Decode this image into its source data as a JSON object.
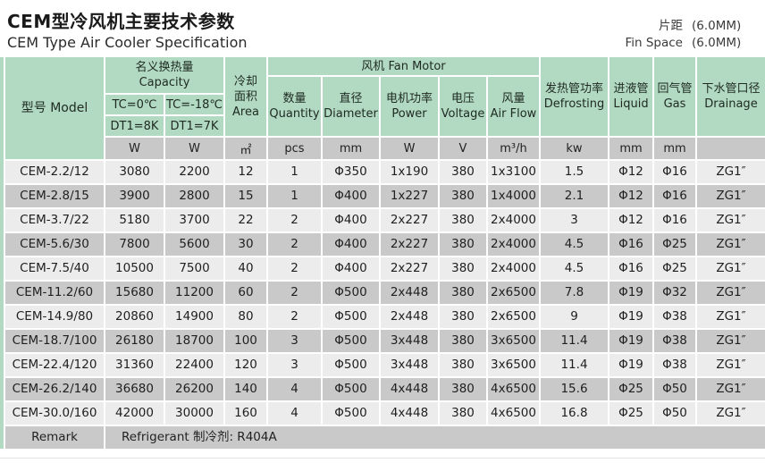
{
  "colors": {
    "header_green": "#b2d9c1",
    "row_light": "#ececec",
    "row_dark": "#c9c9c9",
    "units_gray": "#c8c8c8"
  },
  "header": {
    "title_cn": "CEM型冷风机主要技术参数",
    "title_en": "CEM Type Air Cooler Specification",
    "fin_space": {
      "label_cn": "片距",
      "value_cn": "(6.0MM)",
      "label_en": "Fin Space",
      "value_en": "(6.0MM)"
    }
  },
  "table": {
    "model_header": "型号 Model",
    "capacity": {
      "label_cn": "名义换热量",
      "label_en": "Capacity",
      "sub": [
        {
          "condition": "TC=0℃",
          "delta": "DT1=8K"
        },
        {
          "condition": "TC=-18℃",
          "delta": "DT1=7K"
        }
      ],
      "units": [
        "W",
        "W"
      ]
    },
    "area": {
      "line1": "冷却",
      "line2": "面积",
      "line3": "Area",
      "unit": "㎡"
    },
    "fan": {
      "group_label": "风机 Fan Motor",
      "columns": [
        {
          "cn": "数量",
          "en": "Quantity",
          "unit": "pcs"
        },
        {
          "cn": "直径",
          "en": "Diameter",
          "unit": "mm"
        },
        {
          "cn": "电机功率",
          "en": "Power",
          "unit": "W"
        },
        {
          "cn": "电压",
          "en": "Voltage",
          "unit": "V"
        },
        {
          "cn": "风量",
          "en": "Air Flow",
          "unit": "m³/h"
        }
      ]
    },
    "right_columns": [
      {
        "cn": "发热管功率",
        "en": "Defrosting",
        "unit": "kw"
      },
      {
        "cn": "进液管",
        "en": "Liquid",
        "unit": "mm"
      },
      {
        "cn": "回气管",
        "en": "Gas",
        "unit": "mm"
      },
      {
        "cn": "下水管口径",
        "en": "Drainage",
        "unit": ""
      }
    ],
    "rows": [
      {
        "model": "CEM-2.2/12",
        "values": [
          "3080",
          "2200",
          "12",
          "1",
          "Φ350",
          "1x190",
          "380",
          "1x3100",
          "1.5",
          "Φ12",
          "Φ16",
          "ZG1″"
        ]
      },
      {
        "model": "CEM-2.8/15",
        "values": [
          "3900",
          "2800",
          "15",
          "1",
          "Φ400",
          "1x227",
          "380",
          "1x4000",
          "2.1",
          "Φ12",
          "Φ16",
          "ZG1″"
        ]
      },
      {
        "model": "CEM-3.7/22",
        "values": [
          "5180",
          "3700",
          "22",
          "2",
          "Φ400",
          "2x227",
          "380",
          "2x4000",
          "3",
          "Φ12",
          "Φ16",
          "ZG1″"
        ]
      },
      {
        "model": "CEM-5.6/30",
        "values": [
          "7800",
          "5600",
          "30",
          "2",
          "Φ400",
          "2x227",
          "380",
          "2x4000",
          "4.5",
          "Φ16",
          "Φ25",
          "ZG1″"
        ]
      },
      {
        "model": "CEM-7.5/40",
        "values": [
          "10500",
          "7500",
          "40",
          "2",
          "Φ400",
          "2x227",
          "380",
          "2x4000",
          "4.5",
          "Φ16",
          "Φ25",
          "ZG1″"
        ]
      },
      {
        "model": "CEM-11.2/60",
        "values": [
          "15680",
          "11200",
          "60",
          "2",
          "Φ500",
          "2x448",
          "380",
          "2x6500",
          "7.8",
          "Φ19",
          "Φ32",
          "ZG1″"
        ]
      },
      {
        "model": "CEM-14.9/80",
        "values": [
          "20860",
          "14900",
          "80",
          "2",
          "Φ500",
          "2x448",
          "380",
          "2x6500",
          "9",
          "Φ19",
          "Φ38",
          "ZG1″"
        ]
      },
      {
        "model": "CEM-18.7/100",
        "values": [
          "26180",
          "18700",
          "100",
          "3",
          "Φ500",
          "3x448",
          "380",
          "3x6500",
          "11.4",
          "Φ19",
          "Φ38",
          "ZG1″"
        ]
      },
      {
        "model": "CEM-22.4/120",
        "values": [
          "31360",
          "22400",
          "120",
          "3",
          "Φ500",
          "3x448",
          "380",
          "3x6500",
          "11.4",
          "Φ19",
          "Φ38",
          "ZG1″"
        ]
      },
      {
        "model": "CEM-26.2/140",
        "values": [
          "36680",
          "26200",
          "140",
          "4",
          "Φ500",
          "4x448",
          "380",
          "4x6500",
          "15.6",
          "Φ25",
          "Φ50",
          "ZG1″"
        ]
      },
      {
        "model": "CEM-30.0/160",
        "values": [
          "42000",
          "30000",
          "160",
          "4",
          "Φ500",
          "4x448",
          "380",
          "4x6500",
          "16.8",
          "Φ25",
          "Φ50",
          "ZG1″"
        ]
      }
    ],
    "remark": {
      "label": "Remark",
      "value": "Refrigerant 制冷剂: R404A"
    }
  }
}
